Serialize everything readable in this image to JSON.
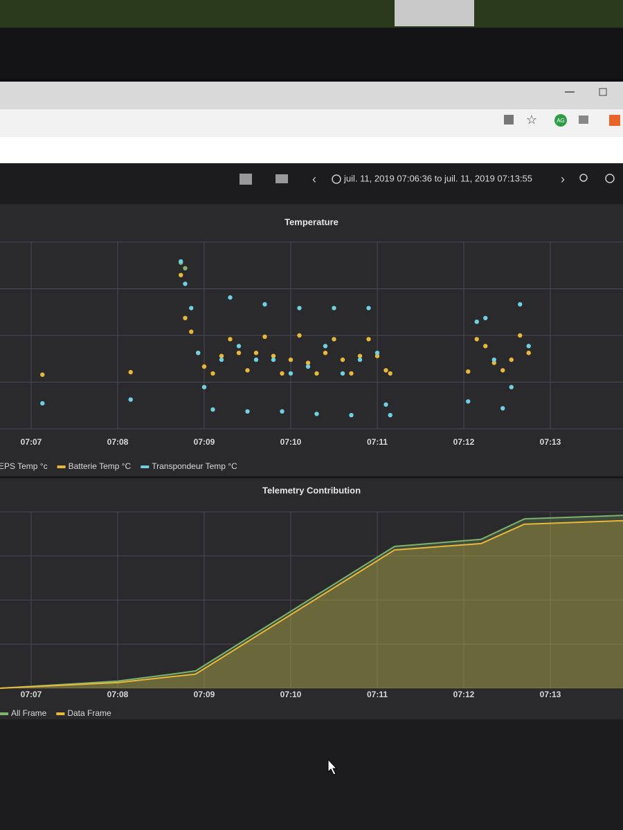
{
  "toolbar": {
    "avatar": "AG",
    "time_range": "juil. 11, 2019 07:06:36 to juil. 11, 2019 07:13:55"
  },
  "chart_data": [
    {
      "type": "scatter",
      "title": "Temperature",
      "x": [
        427.13,
        428.15,
        428.73,
        428.78,
        428.85,
        428.93,
        429.0,
        429.1,
        429.2,
        429.3,
        429.4,
        429.5,
        429.6,
        429.7,
        429.8,
        429.9,
        430.0,
        430.1,
        430.2,
        430.3,
        430.4,
        430.5,
        430.6,
        430.7,
        430.8,
        430.9,
        431.0,
        431.1,
        431.15,
        432.05,
        432.15,
        432.25,
        432.35,
        432.45,
        432.55,
        432.65,
        432.75
      ],
      "series": [
        {
          "name": "EPS Temp °c",
          "color": "#7eb26d",
          "values": [
            null,
            null,
            41.7,
            40.8,
            null,
            null,
            null,
            null,
            null,
            null,
            null,
            null,
            null,
            null,
            null,
            null,
            null,
            null,
            null,
            null,
            null,
            null,
            null,
            null,
            null,
            null,
            null,
            null,
            null,
            null,
            null,
            null,
            null,
            null,
            null,
            null,
            null
          ]
        },
        {
          "name": "Batterie Temp °C",
          "color": "#eab839",
          "values": [
            23.7,
            24.1,
            39.7,
            32.8,
            30.6,
            27.2,
            25,
            23.9,
            26.7,
            29.4,
            27.2,
            24.4,
            27.2,
            29.8,
            26.7,
            23.9,
            26.1,
            30,
            25.6,
            23.9,
            27.2,
            29.4,
            26.1,
            23.9,
            26.7,
            29.4,
            26.7,
            24.4,
            23.9,
            24.2,
            29.4,
            28.3,
            25.6,
            24.4,
            26.1,
            30,
            27.2
          ]
        },
        {
          "name": "Transpondeur Temp °C",
          "color": "#6ed0e0",
          "values": [
            19.1,
            19.7,
            41.9,
            38.3,
            34.4,
            27.2,
            21.7,
            18.1,
            26.1,
            36.1,
            28.3,
            17.8,
            26.1,
            35,
            26.1,
            17.8,
            23.9,
            34.4,
            25,
            17.4,
            28.3,
            34.4,
            23.9,
            17.2,
            26.1,
            34.4,
            27.2,
            18.9,
            17.2,
            19.4,
            32.2,
            32.8,
            26.1,
            18.3,
            21.7,
            35,
            28.3
          ]
        }
      ],
      "xlim": [
        426.64,
        433.84
      ],
      "ylim": [
        15,
        45
      ],
      "xticks": [
        {
          "value": 427,
          "label": "07:07"
        },
        {
          "value": 428,
          "label": "07:08"
        },
        {
          "value": 429,
          "label": "07:09"
        },
        {
          "value": 430,
          "label": "07:10"
        },
        {
          "value": 431,
          "label": "07:11"
        },
        {
          "value": 432,
          "label": "07:12"
        },
        {
          "value": 433,
          "label": "07:13"
        }
      ],
      "legend": "bottom"
    },
    {
      "type": "area",
      "title": "Telemetry Contribution",
      "x": [
        426.64,
        428.0,
        428.6,
        428.9,
        431.2,
        432.2,
        432.7,
        433.84
      ],
      "series": [
        {
          "name": "All Frame",
          "color": "#7eb26d",
          "values": [
            0,
            20,
            39,
            49,
            402,
            422,
            480,
            490
          ]
        },
        {
          "name": "Data Frame",
          "color": "#eab839",
          "values": [
            0,
            16,
            32,
            40,
            392,
            410,
            465,
            475
          ]
        }
      ],
      "xlim": [
        426.64,
        433.84
      ],
      "ylim": [
        0,
        500
      ],
      "xticks": [
        {
          "value": 427,
          "label": "07:07"
        },
        {
          "value": 428,
          "label": "07:08"
        },
        {
          "value": 429,
          "label": "07:09"
        },
        {
          "value": 430,
          "label": "07:10"
        },
        {
          "value": 431,
          "label": "07:11"
        },
        {
          "value": 432,
          "label": "07:12"
        },
        {
          "value": 433,
          "label": "07:13"
        }
      ],
      "legend": "bottom"
    }
  ]
}
